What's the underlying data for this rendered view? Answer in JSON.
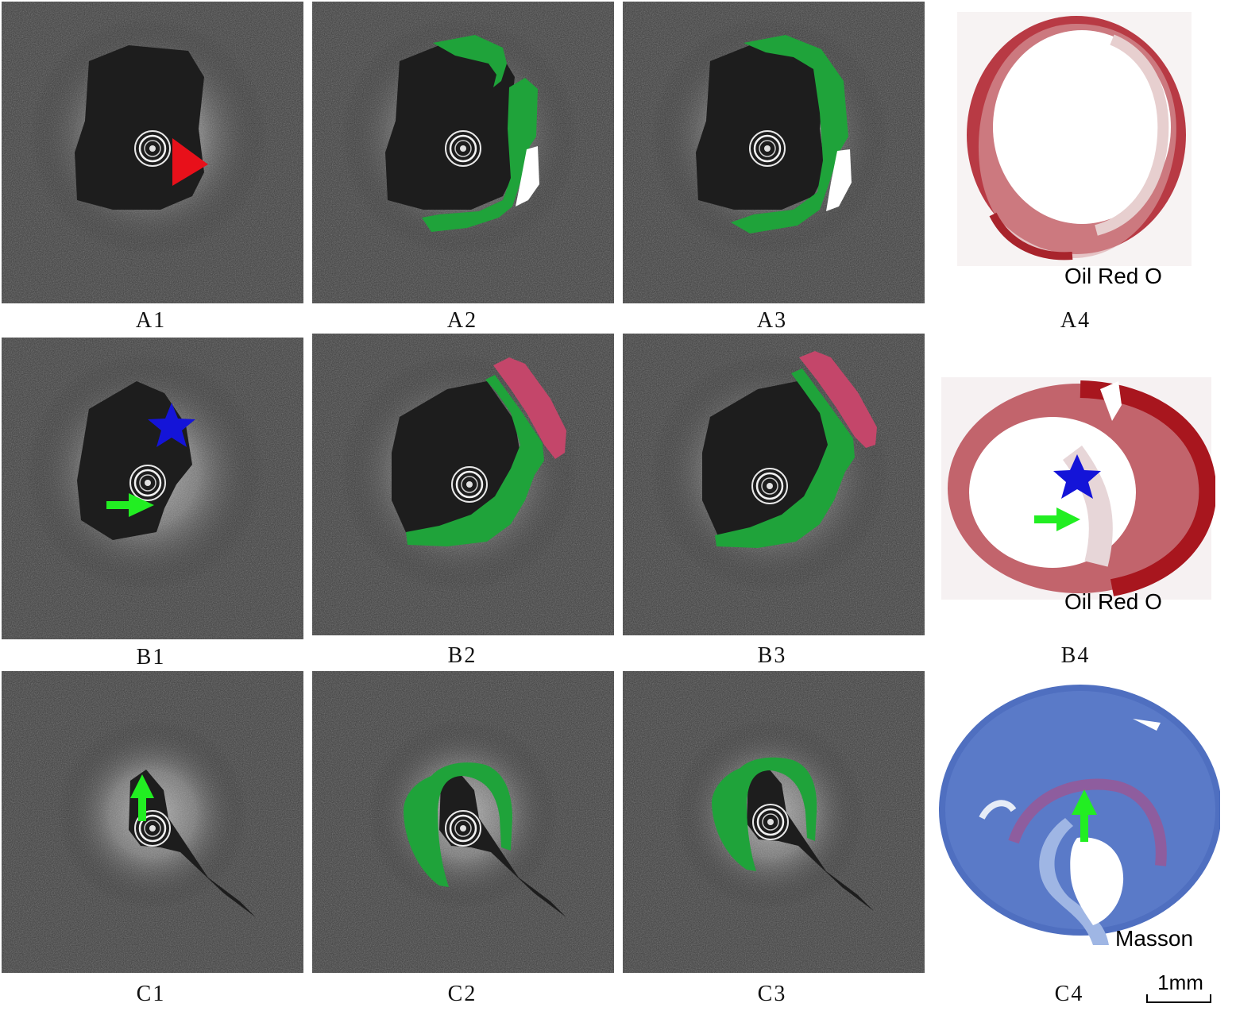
{
  "panels": {
    "A1": "A1",
    "A2": "A2",
    "A3": "A3",
    "A4": "A4",
    "B1": "B1",
    "B2": "B2",
    "B3": "B3",
    "B4": "B4",
    "C1": "C1",
    "C2": "C2",
    "C3": "C3",
    "C4": "C4"
  },
  "stains": {
    "A4": "Oil Red O",
    "B4": "Oil Red O",
    "C4": "Masson"
  },
  "scale_bar": "1mm",
  "colors": {
    "fibrous_annotation": "#1fa33a",
    "calcium_annotation": "#ffffff",
    "lipid_annotation": "#c4466a",
    "arrowhead_marker": "#e8101a",
    "star_marker": "#1414d8",
    "arrow_marker": "#22ee22"
  }
}
